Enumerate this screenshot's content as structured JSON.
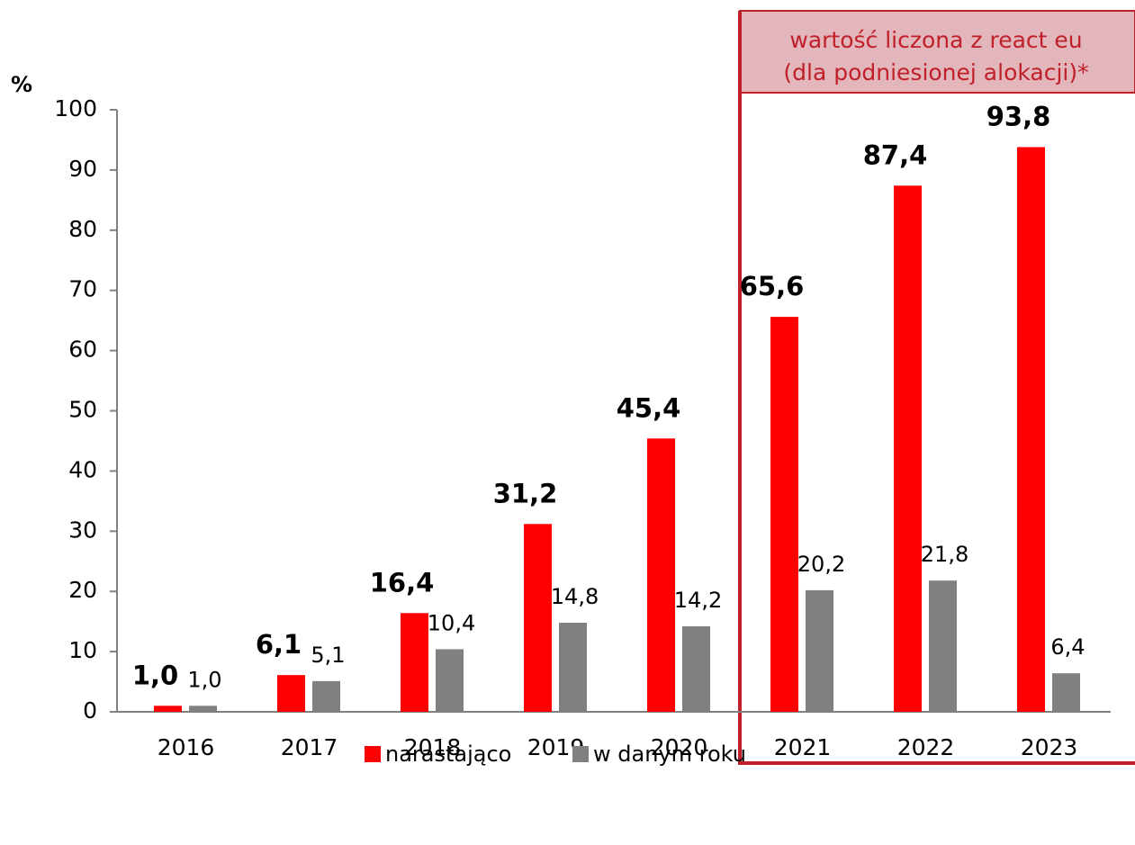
{
  "chart_data": {
    "type": "bar",
    "y_label": "%",
    "annotation": [
      "wartość liczona z react eu",
      "(dla podniesionej alokacji)*"
    ],
    "categories": [
      "2016",
      "2017",
      "2018",
      "2019",
      "2020",
      "2021",
      "2022",
      "2023"
    ],
    "series": [
      {
        "name": "narastająco",
        "color": "#ff0000",
        "values": [
          1.0,
          6.1,
          16.4,
          31.2,
          45.4,
          65.6,
          87.4,
          93.8
        ],
        "value_labels": [
          "1,0",
          "6,1",
          "16,4",
          "31,2",
          "45,4",
          "65,6",
          "87,4",
          "93,8"
        ]
      },
      {
        "name": "w danym roku",
        "color": "#808080",
        "values": [
          1.0,
          5.1,
          10.4,
          14.8,
          14.2,
          20.2,
          21.8,
          6.4
        ],
        "value_labels": [
          "1,0",
          "5,1",
          "10,4",
          "14,8",
          "14,2",
          "20,2",
          "21,8",
          "6,4"
        ]
      }
    ],
    "ylim": [
      0,
      100
    ],
    "yticks": [
      0,
      10,
      20,
      30,
      40,
      50,
      60,
      70,
      80,
      90,
      100
    ]
  }
}
